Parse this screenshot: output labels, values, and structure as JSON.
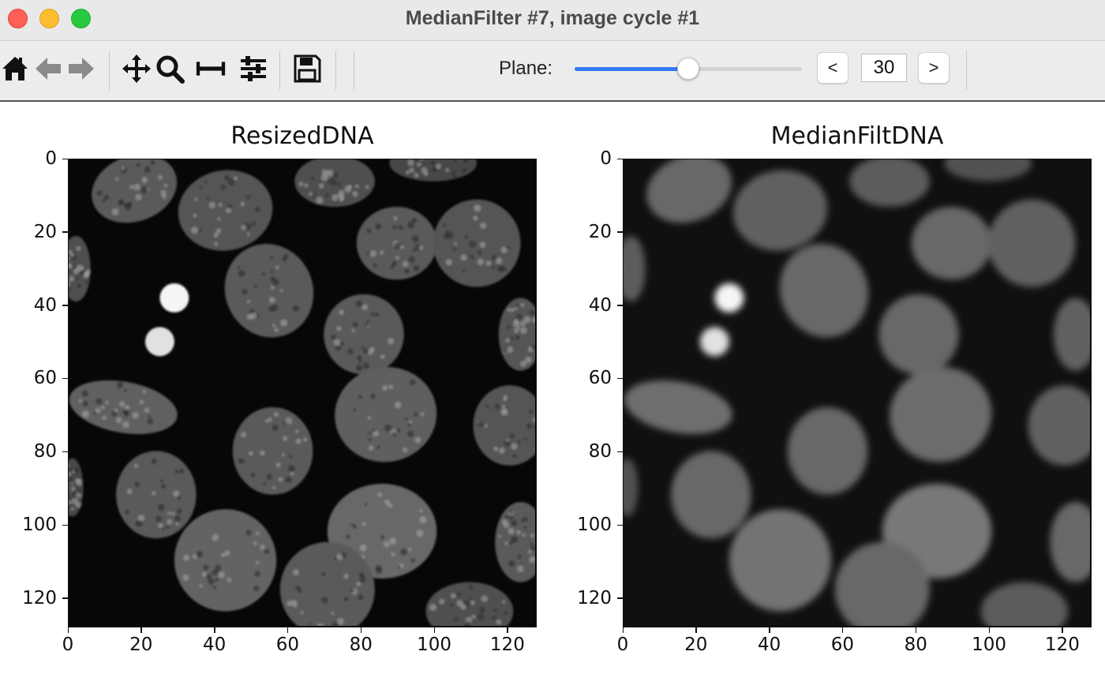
{
  "window": {
    "title": "MedianFilter #7, image cycle #1"
  },
  "toolbar": {
    "icons": [
      "home-icon",
      "back-arrow-icon",
      "forward-arrow-icon",
      "pan-icon",
      "zoom-icon",
      "subplots-icon",
      "configure-icon",
      "save-icon"
    ],
    "plane_label": "Plane:",
    "plane_value": "30",
    "plane_fraction": 0.5,
    "prev_label": "<",
    "next_label": ">",
    "accent_color": "#3478f6"
  },
  "figure": {
    "panels": [
      {
        "title": "ResizedDNA",
        "style": "sharp",
        "xticks": [
          "0",
          "20",
          "40",
          "60",
          "80",
          "100",
          "120"
        ],
        "yticks": [
          "0",
          "20",
          "40",
          "60",
          "80",
          "100",
          "120"
        ],
        "xlim": [
          0,
          128
        ],
        "ylim": [
          128,
          0
        ]
      },
      {
        "title": "MedianFiltDNA",
        "style": "smooth",
        "xticks": [
          "0",
          "20",
          "40",
          "60",
          "80",
          "100",
          "120"
        ],
        "yticks": [
          "0",
          "20",
          "40",
          "60",
          "80",
          "100",
          "120"
        ],
        "xlim": [
          0,
          128
        ],
        "ylim": [
          128,
          0
        ]
      }
    ]
  }
}
